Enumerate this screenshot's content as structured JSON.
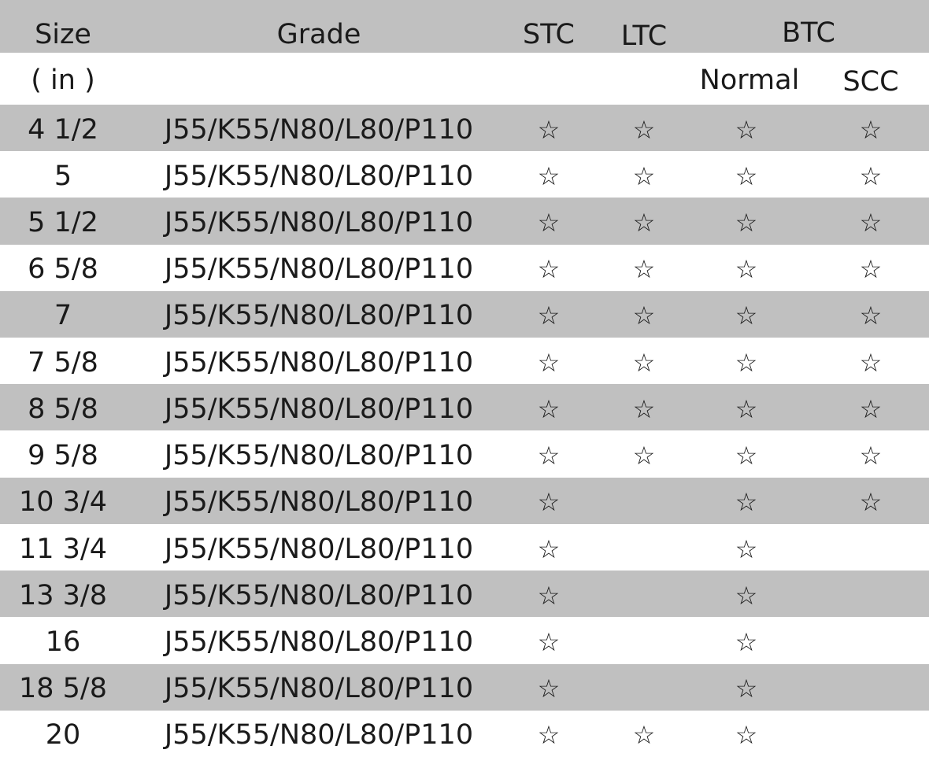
{
  "header": {
    "top": {
      "size": "Size",
      "grade": "Grade",
      "stc": "STC",
      "ltc": "LTC",
      "btc": "BTC"
    },
    "sub": {
      "unit": "( in )",
      "normal": "Normal",
      "scc": "SCC"
    }
  },
  "table": {
    "rows": [
      [
        "4 1/2",
        "J55/K55/N80/L80/P110",
        "☆",
        "☆",
        "☆",
        "☆"
      ],
      [
        "5",
        "J55/K55/N80/L80/P110",
        "☆",
        "☆",
        "☆",
        "☆"
      ],
      [
        "5 1/2",
        "J55/K55/N80/L80/P110",
        "☆",
        "☆",
        "☆",
        "☆"
      ],
      [
        "6 5/8",
        "J55/K55/N80/L80/P110",
        "☆",
        "☆",
        "☆",
        "☆"
      ],
      [
        "7",
        "J55/K55/N80/L80/P110",
        "☆",
        "☆",
        "☆",
        "☆"
      ],
      [
        "7 5/8",
        "J55/K55/N80/L80/P110",
        "☆",
        "☆",
        "☆",
        "☆"
      ],
      [
        "8 5/8",
        "J55/K55/N80/L80/P110",
        "☆",
        "☆",
        "☆",
        "☆"
      ],
      [
        "9 5/8",
        "J55/K55/N80/L80/P110",
        "☆",
        "☆",
        "☆",
        "☆"
      ],
      [
        "10 3/4",
        "J55/K55/N80/L80/P110",
        "☆",
        null,
        "☆",
        "☆"
      ],
      [
        "11 3/4",
        "J55/K55/N80/L80/P110",
        "☆",
        null,
        "☆",
        null
      ],
      [
        "13 3/8",
        "J55/K55/N80/L80/P110",
        "☆",
        null,
        "☆",
        null
      ],
      [
        "16",
        "J55/K55/N80/L80/P110",
        "☆",
        null,
        "☆",
        null
      ],
      [
        "18 5/8",
        "J55/K55/N80/L80/P110",
        "☆",
        null,
        "☆",
        null
      ],
      [
        "20",
        "J55/K55/N80/L80/P110",
        "☆",
        "☆",
        "☆",
        null
      ]
    ]
  }
}
